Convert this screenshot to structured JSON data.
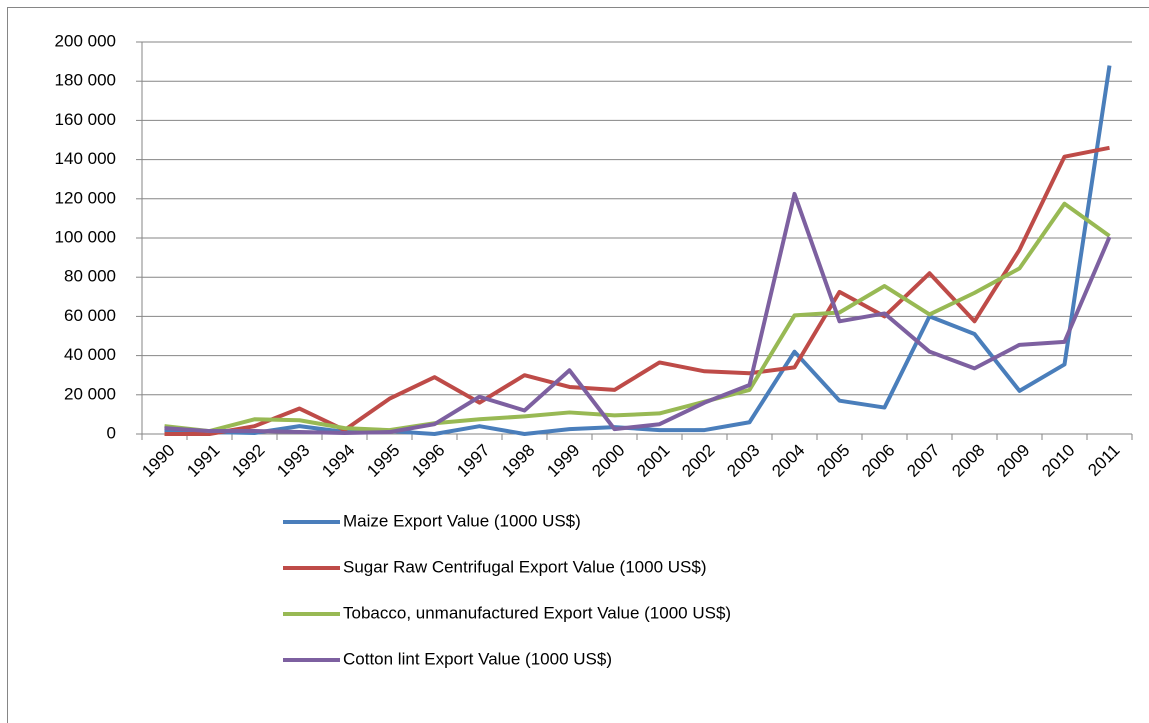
{
  "chart_data": {
    "type": "line",
    "categories": [
      "1990",
      "1991",
      "1992",
      "1993",
      "1994",
      "1995",
      "1996",
      "1997",
      "1998",
      "1999",
      "2000",
      "2001",
      "2002",
      "2003",
      "2004",
      "2005",
      "2006",
      "2007",
      "2008",
      "2009",
      "2010",
      "2011"
    ],
    "series": [
      {
        "name": "Maize Export Value (1000 US$)",
        "color": "#4a7ebb",
        "values": [
          2000,
          1000,
          500,
          4000,
          1000,
          1500,
          0,
          4000,
          0,
          2500,
          3500,
          2000,
          2000,
          6000,
          42000,
          17000,
          13500,
          60000,
          51000,
          22000,
          35500,
          188000
        ]
      },
      {
        "name": "Sugar Raw Centrifugal Export Value (1000 US$)",
        "color": "#be4b48",
        "values": [
          0,
          0,
          4000,
          13000,
          2000,
          18000,
          29000,
          16000,
          30000,
          24000,
          22500,
          36500,
          32000,
          31000,
          34000,
          72500,
          60000,
          82000,
          57500,
          94000,
          141500,
          146000
        ]
      },
      {
        "name": "Tobacco, unmanufactured Export Value (1000 US$)",
        "color": "#98b954",
        "values": [
          4000,
          1500,
          7500,
          7000,
          3000,
          2000,
          5500,
          7500,
          9000,
          11000,
          9500,
          10500,
          16500,
          22500,
          60500,
          62000,
          75500,
          61000,
          72000,
          84500,
          117500,
          101000
        ]
      },
      {
        "name": "Cotton lint Export Value (1000 US$)",
        "color": "#7d60a0",
        "values": [
          3000,
          1500,
          1500,
          1000,
          500,
          1000,
          5000,
          19000,
          12000,
          32500,
          2500,
          5000,
          16000,
          25000,
          122500,
          57500,
          61500,
          42000,
          33500,
          45500,
          47000,
          100500
        ]
      }
    ],
    "ylim": [
      0,
      200000
    ],
    "yticks": [
      0,
      {
        "value": 20000,
        "label": "20 000"
      },
      {
        "value": 40000,
        "label": "40 000"
      },
      {
        "value": 60000,
        "label": "60 000"
      },
      {
        "value": 80000,
        "label": "80 000"
      },
      {
        "value": 100000,
        "label": "100 000"
      },
      {
        "value": 120000,
        "label": "120 000"
      },
      {
        "value": 140000,
        "label": "140 000"
      },
      {
        "value": 160000,
        "label": "160 000"
      },
      {
        "value": 180000,
        "label": "180 000"
      },
      {
        "value": 200000,
        "label": "200 000"
      }
    ],
    "grid": true,
    "legend": "bottom"
  }
}
